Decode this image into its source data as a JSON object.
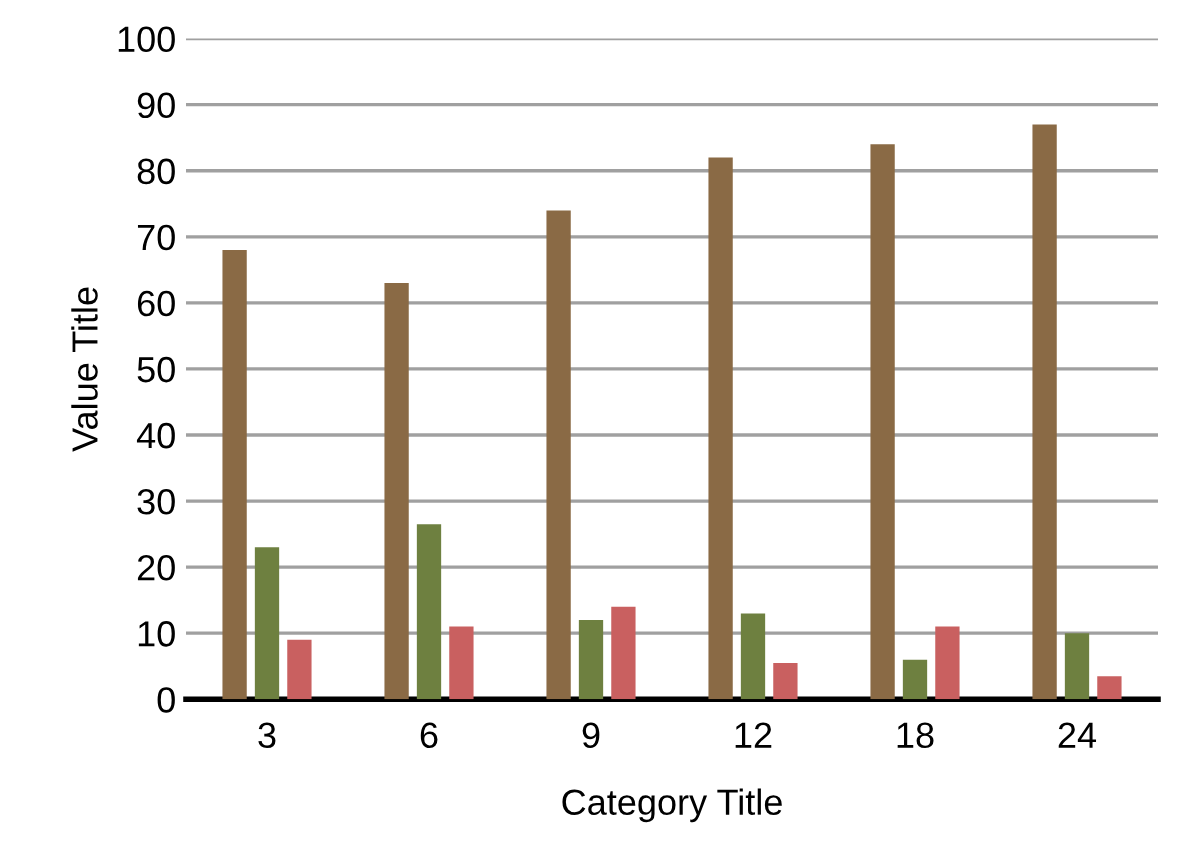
{
  "chart_data": {
    "type": "bar",
    "xlabel": "Category Title",
    "ylabel": "Value Title",
    "categories": [
      "3",
      "6",
      "9",
      "12",
      "18",
      "24"
    ],
    "series": [
      {
        "color": "#8a6a45",
        "values": [
          68,
          63,
          74,
          82,
          84,
          87
        ]
      },
      {
        "color": "#6e8040",
        "values": [
          23,
          26.5,
          12,
          13,
          6,
          10
        ]
      },
      {
        "color": "#c96060",
        "values": [
          9,
          11,
          14,
          5.5,
          11,
          3.5
        ]
      }
    ],
    "ylim": [
      0,
      100
    ],
    "yticks": [
      0,
      10,
      20,
      30,
      40,
      50,
      60,
      70,
      80,
      90,
      100
    ],
    "grid": "y",
    "legend": false
  }
}
